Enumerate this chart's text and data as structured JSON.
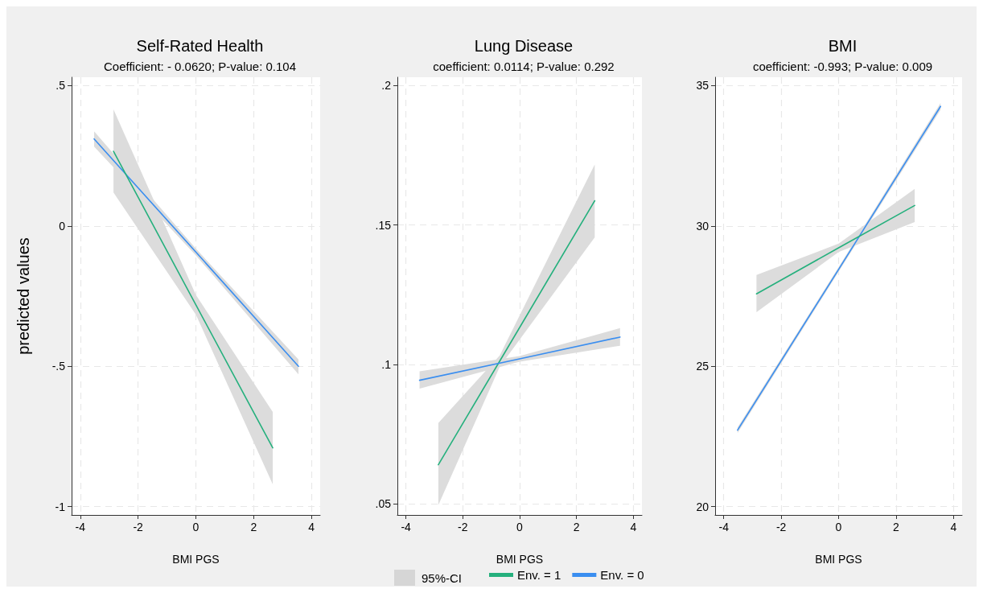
{
  "chart_data": [
    {
      "type": "line",
      "title": "Self-Rated Health",
      "subtitle": "Coefficient: - 0.0620; P-value: 0.104",
      "xlabel": "BMI PGS",
      "ylabel": "predicted values",
      "xlim": [
        -4.3,
        4.3
      ],
      "xticks": [
        -4,
        -2,
        0,
        2,
        4
      ],
      "ylim": [
        -1.03,
        0.53
      ],
      "yticks": [
        {
          "value": -1,
          "label": "-1"
        },
        {
          "value": -0.5,
          "label": "-.5"
        },
        0,
        {
          "value": 0.5,
          "label": ".5"
        }
      ],
      "grid": true,
      "legend": false,
      "marker": "none",
      "line_style": "solid",
      "series": [
        {
          "color": "#3a8ef0",
          "x": [
            -3.52,
            0,
            3.55
          ],
          "values": [
            0.31,
            -0.093,
            -0.5
          ],
          "lower": [
            0.283,
            -0.105,
            -0.529
          ],
          "upper": [
            0.337,
            -0.081,
            -0.476
          ]
        },
        {
          "color": "#25b07d",
          "x": [
            -2.85,
            0,
            2.66
          ],
          "values": [
            0.266,
            -0.281,
            -0.791
          ],
          "lower": [
            0.119,
            -0.316,
            -0.921
          ],
          "upper": [
            0.415,
            -0.246,
            -0.663
          ]
        }
      ]
    },
    {
      "type": "line",
      "title": "Lung Disease",
      "subtitle": "coefficient: 0.0114; P-value: 0.292",
      "xlabel": "BMI PGS",
      "legend_title": "95%-CI",
      "xlim": [
        -4.3,
        4.3
      ],
      "xticks": [
        -4,
        -2,
        0,
        2,
        4
      ],
      "ylim": [
        0.046,
        0.203
      ],
      "yticks": [
        {
          "value": 0.05,
          "label": ".05"
        },
        {
          "value": 0.1,
          "label": ".1"
        },
        {
          "value": 0.15,
          "label": ".15"
        },
        {
          "value": 0.2,
          "label": ".2"
        }
      ],
      "grid": true,
      "legend": "bottom",
      "marker": "none",
      "line_style": "solid",
      "series": [
        {
          "name": "Env. = 1",
          "color": "#25b07d",
          "x": [
            -2.86,
            -0.7,
            2.64
          ],
          "values": [
            0.064,
            0.1012,
            0.1587
          ],
          "lower": [
            0.0495,
            0.0992,
            0.1456
          ],
          "upper": [
            0.079,
            0.1032,
            0.1717
          ]
        },
        {
          "name": "Env. = 0",
          "color": "#3a8ef0",
          "x": [
            -3.52,
            0,
            3.53
          ],
          "values": [
            0.0943,
            0.102,
            0.1098
          ],
          "lower": [
            0.0913,
            0.101,
            0.1067
          ],
          "upper": [
            0.0975,
            0.103,
            0.113
          ]
        }
      ]
    },
    {
      "type": "line",
      "title": "BMI",
      "subtitle": "coefficient: -0.993; P-value: 0.009",
      "xlabel": "BMI PGS",
      "xlim": [
        -4.3,
        4.3
      ],
      "xticks": [
        -4,
        -2,
        0,
        2,
        4
      ],
      "ylim": [
        19.7,
        35.3
      ],
      "yticks": [
        20,
        25,
        30,
        35
      ],
      "grid": true,
      "legend": false,
      "marker": "none",
      "line_style": "solid",
      "series": [
        {
          "color": "#3a8ef0",
          "x": [
            -3.52,
            0,
            3.55
          ],
          "values": [
            22.72,
            28.45,
            34.26
          ],
          "lower": [
            22.62,
            28.37,
            34.14
          ],
          "upper": [
            22.82,
            28.53,
            34.38
          ]
        },
        {
          "color": "#25b07d",
          "x": [
            -2.86,
            0,
            2.65
          ],
          "values": [
            27.58,
            29.22,
            30.73
          ],
          "lower": [
            26.93,
            29.07,
            30.14
          ],
          "upper": [
            28.25,
            29.37,
            31.32
          ]
        }
      ]
    }
  ]
}
